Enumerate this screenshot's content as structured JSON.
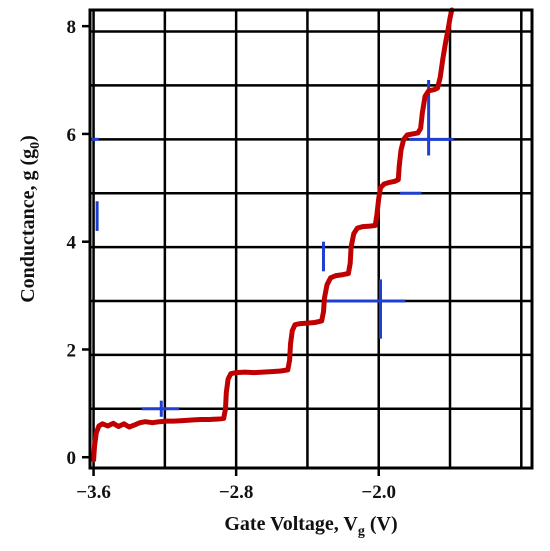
{
  "chart_data": {
    "type": "line",
    "title": "",
    "xlabel_main": "Gate Voltage, V",
    "xlabel_sub": "g",
    "xlabel_unit": " (V)",
    "ylabel_main": "Conductance, g (g",
    "ylabel_sub": "0",
    "ylabel_unit": ")",
    "xlim": [
      -3.62,
      -1.14
    ],
    "ylim": [
      -0.2,
      8.3
    ],
    "x_ticks": [
      {
        "value": -3.6,
        "label": "−3.6"
      },
      {
        "value": -2.8,
        "label": "−2.8"
      },
      {
        "value": -2.0,
        "label": "−2.0"
      }
    ],
    "y_ticks": [
      {
        "value": 0,
        "label": "0"
      },
      {
        "value": 2,
        "label": "2"
      },
      {
        "value": 4,
        "label": "4"
      },
      {
        "value": 6,
        "label": "6"
      },
      {
        "value": 8,
        "label": "8"
      }
    ],
    "grid": true,
    "grid_x": [
      -3.6,
      -3.2,
      -2.8,
      -2.4,
      -2.0,
      -1.6,
      -1.2
    ],
    "grid_y": [
      0.9,
      1.9,
      2.9,
      3.9,
      4.9,
      5.9,
      6.9,
      7.9
    ],
    "line_color": "#c00000",
    "grid_color": "#000000",
    "highlight_color": "#1f3fd0",
    "series": [
      {
        "values": [
          [
            -3.6,
            -0.05
          ],
          [
            -3.595,
            0.2
          ],
          [
            -3.585,
            0.45
          ],
          [
            -3.57,
            0.58
          ],
          [
            -3.55,
            0.62
          ],
          [
            -3.52,
            0.58
          ],
          [
            -3.49,
            0.63
          ],
          [
            -3.46,
            0.57
          ],
          [
            -3.43,
            0.62
          ],
          [
            -3.4,
            0.56
          ],
          [
            -3.37,
            0.6
          ],
          [
            -3.34,
            0.64
          ],
          [
            -3.31,
            0.66
          ],
          [
            -3.27,
            0.64
          ],
          [
            -3.23,
            0.66
          ],
          [
            -3.19,
            0.67
          ],
          [
            -3.15,
            0.67
          ],
          [
            -3.1,
            0.68
          ],
          [
            -3.05,
            0.69
          ],
          [
            -3.0,
            0.7
          ],
          [
            -2.95,
            0.7
          ],
          [
            -2.9,
            0.71
          ],
          [
            -2.87,
            0.72
          ],
          [
            -2.86,
            0.9
          ],
          [
            -2.855,
            1.2
          ],
          [
            -2.845,
            1.45
          ],
          [
            -2.83,
            1.55
          ],
          [
            -2.8,
            1.57
          ],
          [
            -2.75,
            1.58
          ],
          [
            -2.7,
            1.57
          ],
          [
            -2.65,
            1.58
          ],
          [
            -2.6,
            1.59
          ],
          [
            -2.55,
            1.6
          ],
          [
            -2.51,
            1.62
          ],
          [
            -2.5,
            1.8
          ],
          [
            -2.495,
            2.1
          ],
          [
            -2.485,
            2.35
          ],
          [
            -2.47,
            2.46
          ],
          [
            -2.44,
            2.48
          ],
          [
            -2.4,
            2.49
          ],
          [
            -2.36,
            2.5
          ],
          [
            -2.32,
            2.53
          ],
          [
            -2.31,
            2.7
          ],
          [
            -2.305,
            2.95
          ],
          [
            -2.29,
            3.2
          ],
          [
            -2.27,
            3.33
          ],
          [
            -2.24,
            3.37
          ],
          [
            -2.2,
            3.39
          ],
          [
            -2.17,
            3.41
          ],
          [
            -2.16,
            3.6
          ],
          [
            -2.155,
            3.9
          ],
          [
            -2.14,
            4.15
          ],
          [
            -2.12,
            4.25
          ],
          [
            -2.09,
            4.28
          ],
          [
            -2.05,
            4.29
          ],
          [
            -2.02,
            4.3
          ],
          [
            -2.01,
            4.5
          ],
          [
            -2.0,
            4.8
          ],
          [
            -1.99,
            5.0
          ],
          [
            -1.97,
            5.07
          ],
          [
            -1.94,
            5.1
          ],
          [
            -1.91,
            5.12
          ],
          [
            -1.89,
            5.15
          ],
          [
            -1.885,
            5.4
          ],
          [
            -1.875,
            5.7
          ],
          [
            -1.86,
            5.9
          ],
          [
            -1.84,
            5.98
          ],
          [
            -1.81,
            6.0
          ],
          [
            -1.78,
            6.02
          ],
          [
            -1.765,
            6.1
          ],
          [
            -1.755,
            6.4
          ],
          [
            -1.74,
            6.7
          ],
          [
            -1.72,
            6.8
          ],
          [
            -1.69,
            6.82
          ],
          [
            -1.67,
            6.85
          ],
          [
            -1.655,
            7.05
          ],
          [
            -1.64,
            7.4
          ],
          [
            -1.625,
            7.7
          ],
          [
            -1.61,
            7.95
          ],
          [
            -1.6,
            8.15
          ],
          [
            -1.59,
            8.3
          ]
        ]
      }
    ]
  }
}
